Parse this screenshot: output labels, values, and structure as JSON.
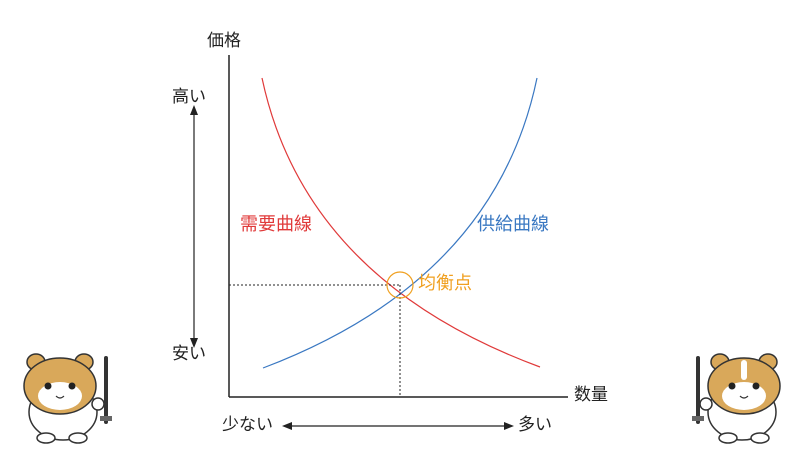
{
  "axes": {
    "y_label": "価格",
    "x_label": "数量"
  },
  "price_scale": {
    "high": "高い",
    "low": "安い"
  },
  "quantity_scale": {
    "few": "少ない",
    "many": "多い"
  },
  "curves": {
    "demand": {
      "label": "需要曲線",
      "color": "#e03a3a"
    },
    "supply": {
      "label": "供給曲線",
      "color": "#3a78c2"
    }
  },
  "equilibrium": {
    "label": "均衡点",
    "color": "#f0a020"
  },
  "characters": [
    "hamster-with-sword",
    "hamster-with-sword"
  ]
}
